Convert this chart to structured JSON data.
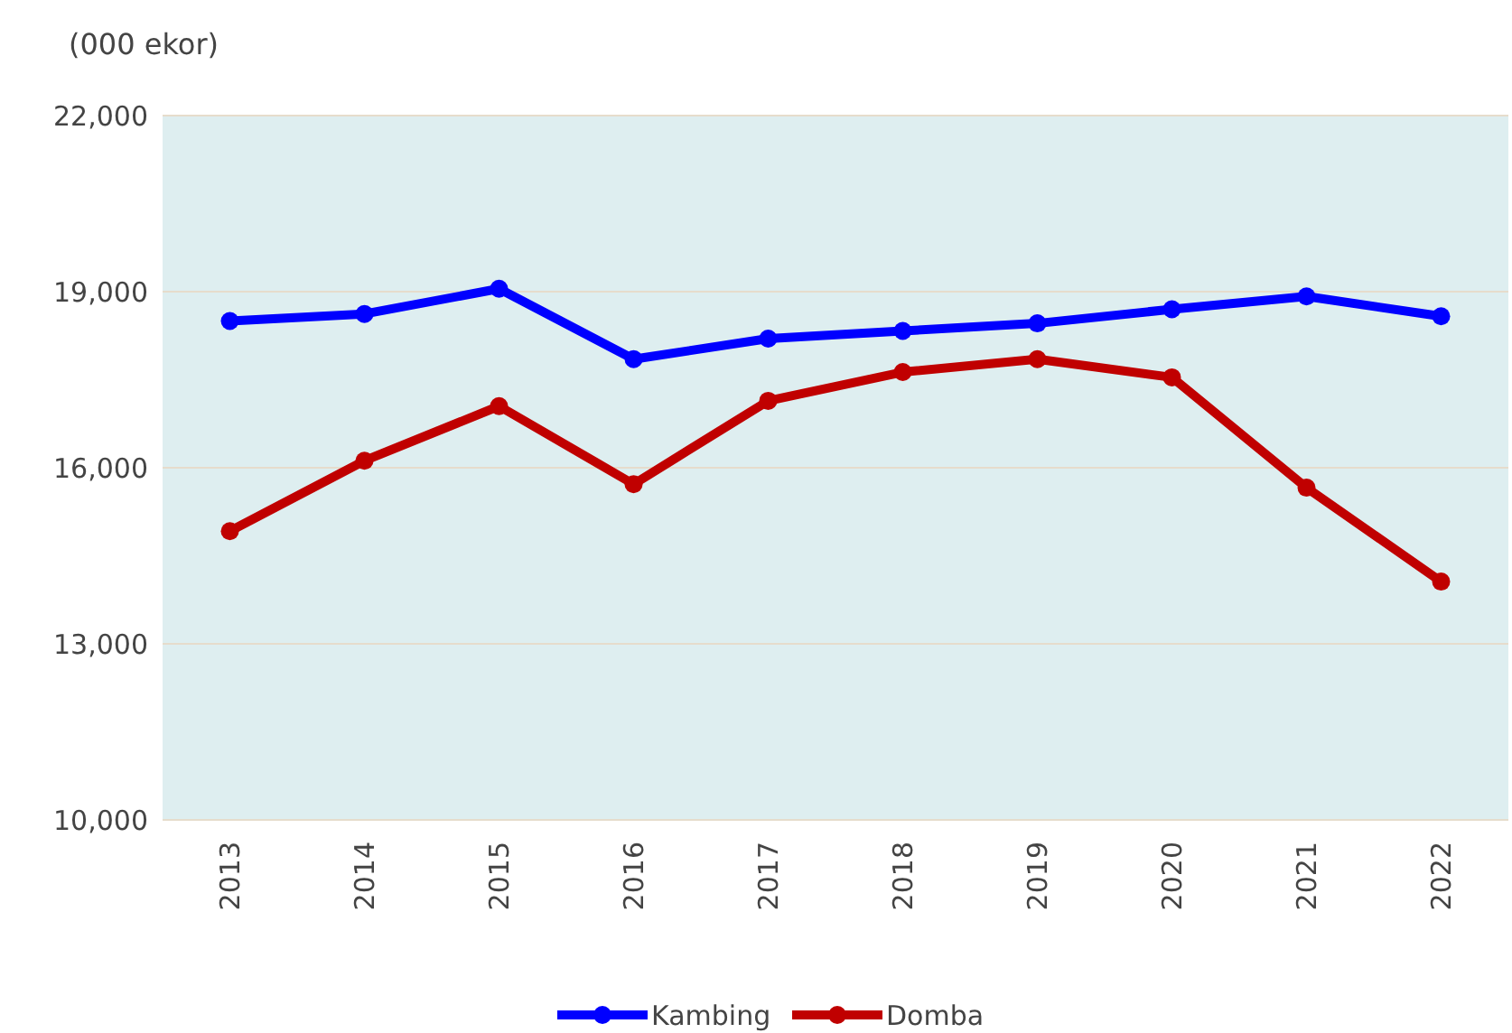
{
  "chart_data": {
    "type": "line",
    "ylabel": "(000 ekor)",
    "categories": [
      "2013",
      "2014",
      "2015",
      "2016",
      "2017",
      "2018",
      "2019",
      "2020",
      "2021",
      "2022"
    ],
    "series": [
      {
        "name": "Kambing",
        "color": "#0000ff",
        "values": [
          18500,
          18620,
          19050,
          17850,
          18200,
          18330,
          18460,
          18700,
          18920,
          18580
        ]
      },
      {
        "name": "Domba",
        "color": "#c00000",
        "values": [
          14920,
          16120,
          17050,
          15720,
          17140,
          17630,
          17850,
          17540,
          15660,
          14060
        ]
      }
    ],
    "ylim": [
      10000,
      22000
    ],
    "yticks": [
      {
        "value": 10000,
        "label": "10,000"
      },
      {
        "value": 13000,
        "label": "13,000"
      },
      {
        "value": 16000,
        "label": "16,000"
      },
      {
        "value": 19000,
        "label": "19,000"
      },
      {
        "value": 22000,
        "label": "22,000"
      }
    ],
    "grid": "y",
    "legend": "bottom",
    "marker": "circle",
    "line_style": "solid"
  }
}
